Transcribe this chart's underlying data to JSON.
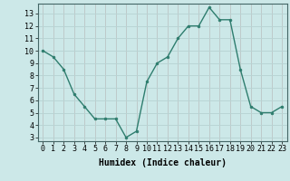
{
  "x": [
    0,
    1,
    2,
    3,
    4,
    5,
    6,
    7,
    8,
    9,
    10,
    11,
    12,
    13,
    14,
    15,
    16,
    17,
    18,
    19,
    20,
    21,
    22,
    23
  ],
  "y": [
    10,
    9.5,
    8.5,
    6.5,
    5.5,
    4.5,
    4.5,
    4.5,
    3.0,
    3.5,
    7.5,
    9.0,
    9.5,
    11.0,
    12.0,
    12.0,
    13.5,
    12.5,
    12.5,
    8.5,
    5.5,
    5.0,
    5.0,
    5.5
  ],
  "line_color": "#2e7d6e",
  "marker": "o",
  "markersize": 2,
  "linewidth": 1.0,
  "xlabel": "Humidex (Indice chaleur)",
  "xlim": [
    -0.5,
    23.5
  ],
  "ylim": [
    2.7,
    13.8
  ],
  "yticks": [
    3,
    4,
    5,
    6,
    7,
    8,
    9,
    10,
    11,
    12,
    13
  ],
  "xticks": [
    0,
    1,
    2,
    3,
    4,
    5,
    6,
    7,
    8,
    9,
    10,
    11,
    12,
    13,
    14,
    15,
    16,
    17,
    18,
    19,
    20,
    21,
    22,
    23
  ],
  "bg_color": "#cce8e8",
  "grid_color": "#b8d4d4",
  "grid_color_major": "#d0a0a0",
  "tick_fontsize": 6,
  "label_fontsize": 7
}
